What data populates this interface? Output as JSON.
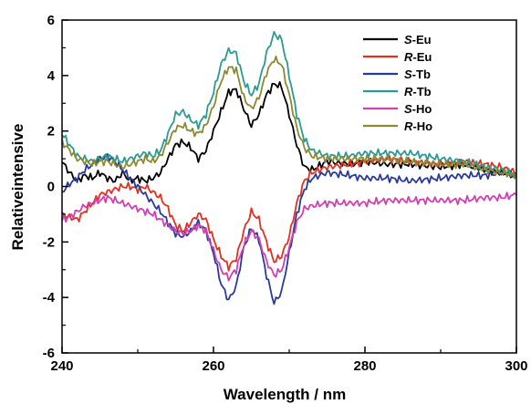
{
  "chart_data": {
    "type": "line",
    "title": "",
    "xlabel": "Wavelength / nm",
    "ylabel": "Relativeintensive",
    "xlim": [
      240,
      300
    ],
    "ylim": [
      -6,
      6
    ],
    "x_ticks": [
      240,
      260,
      280,
      300
    ],
    "y_ticks": [
      -6,
      -4,
      -2,
      0,
      2,
      4,
      6
    ],
    "grid": false,
    "legend_position": "top-right",
    "series": [
      {
        "prefix": "S",
        "suffix": "-Eu",
        "color": "#000000",
        "points": [
          [
            240,
            0.9
          ],
          [
            241,
            0.5
          ],
          [
            242,
            0.2
          ],
          [
            243,
            0.4
          ],
          [
            244,
            0.3
          ],
          [
            245,
            0.5
          ],
          [
            246,
            0.3
          ],
          [
            247,
            0.2
          ],
          [
            248,
            0.5
          ],
          [
            249,
            0.2
          ],
          [
            250,
            0.3
          ],
          [
            251,
            0.2
          ],
          [
            252,
            0.3
          ],
          [
            253,
            0.5
          ],
          [
            254,
            1.0
          ],
          [
            255,
            1.5
          ],
          [
            256,
            1.6
          ],
          [
            257,
            1.4
          ],
          [
            258,
            1.0
          ],
          [
            259,
            1.3
          ],
          [
            260,
            2.0
          ],
          [
            261,
            2.7
          ],
          [
            262,
            3.4
          ],
          [
            263,
            3.5
          ],
          [
            264,
            2.8
          ],
          [
            265,
            2.2
          ],
          [
            266,
            2.6
          ],
          [
            267,
            3.3
          ],
          [
            268,
            3.7
          ],
          [
            269,
            3.6
          ],
          [
            270,
            2.6
          ],
          [
            271,
            1.5
          ],
          [
            272,
            0.7
          ],
          [
            273,
            0.6
          ],
          [
            275,
            0.9
          ],
          [
            278,
            0.8
          ],
          [
            280,
            0.9
          ],
          [
            283,
            0.8
          ],
          [
            286,
            0.8
          ],
          [
            290,
            0.7
          ],
          [
            293,
            0.8
          ],
          [
            296,
            0.6
          ],
          [
            298,
            0.5
          ],
          [
            300,
            0.4
          ]
        ]
      },
      {
        "prefix": "R",
        "suffix": "-Eu",
        "color": "#e03020",
        "points": [
          [
            240,
            -1.0
          ],
          [
            241,
            -1.1
          ],
          [
            242,
            -1.2
          ],
          [
            243,
            -0.9
          ],
          [
            244,
            -0.6
          ],
          [
            245,
            -0.3
          ],
          [
            246,
            -0.2
          ],
          [
            247,
            -0.1
          ],
          [
            248,
            0.0
          ],
          [
            249,
            0.0
          ],
          [
            250,
            -0.1
          ],
          [
            251,
            0.0
          ],
          [
            252,
            -0.2
          ],
          [
            253,
            -0.4
          ],
          [
            254,
            -0.8
          ],
          [
            255,
            -1.4
          ],
          [
            256,
            -1.6
          ],
          [
            257,
            -1.3
          ],
          [
            258,
            -1.0
          ],
          [
            259,
            -1.2
          ],
          [
            260,
            -1.9
          ],
          [
            261,
            -2.5
          ],
          [
            262,
            -2.9
          ],
          [
            263,
            -2.6
          ],
          [
            264,
            -1.6
          ],
          [
            265,
            -0.9
          ],
          [
            266,
            -1.2
          ],
          [
            267,
            -2.0
          ],
          [
            268,
            -2.7
          ],
          [
            269,
            -2.5
          ],
          [
            270,
            -1.8
          ],
          [
            271,
            -0.6
          ],
          [
            272,
            0.2
          ],
          [
            273,
            0.5
          ],
          [
            275,
            0.7
          ],
          [
            278,
            0.8
          ],
          [
            280,
            0.9
          ],
          [
            283,
            1.0
          ],
          [
            286,
            0.9
          ],
          [
            290,
            0.8
          ],
          [
            293,
            0.9
          ],
          [
            296,
            0.8
          ],
          [
            298,
            0.7
          ],
          [
            300,
            0.5
          ]
        ]
      },
      {
        "prefix": "S",
        "suffix": "-Tb",
        "color": "#2a3a9a",
        "points": [
          [
            240,
            -0.2
          ],
          [
            241,
            0.1
          ],
          [
            242,
            0.3
          ],
          [
            243,
            0.6
          ],
          [
            244,
            0.8
          ],
          [
            245,
            1.0
          ],
          [
            246,
            1.1
          ],
          [
            247,
            0.9
          ],
          [
            248,
            0.6
          ],
          [
            249,
            0.3
          ],
          [
            250,
            0.0
          ],
          [
            251,
            -0.3
          ],
          [
            252,
            -0.6
          ],
          [
            253,
            -0.9
          ],
          [
            254,
            -1.3
          ],
          [
            255,
            -1.7
          ],
          [
            256,
            -1.8
          ],
          [
            257,
            -1.6
          ],
          [
            258,
            -1.3
          ],
          [
            259,
            -1.6
          ],
          [
            260,
            -2.4
          ],
          [
            261,
            -3.5
          ],
          [
            262,
            -4.1
          ],
          [
            263,
            -3.6
          ],
          [
            264,
            -2.2
          ],
          [
            265,
            -1.5
          ],
          [
            266,
            -1.9
          ],
          [
            267,
            -3.2
          ],
          [
            268,
            -4.2
          ],
          [
            269,
            -3.8
          ],
          [
            270,
            -2.4
          ],
          [
            271,
            -1.0
          ],
          [
            272,
            -0.1
          ],
          [
            273,
            0.3
          ],
          [
            275,
            0.5
          ],
          [
            278,
            0.4
          ],
          [
            280,
            0.3
          ],
          [
            283,
            0.3
          ],
          [
            286,
            0.2
          ],
          [
            290,
            0.3
          ],
          [
            293,
            0.4
          ],
          [
            296,
            0.4
          ],
          [
            298,
            0.5
          ],
          [
            300,
            0.4
          ]
        ]
      },
      {
        "prefix": "R",
        "suffix": "-Tb",
        "color": "#2a9a92",
        "points": [
          [
            240,
            1.9
          ],
          [
            241,
            1.5
          ],
          [
            242,
            1.1
          ],
          [
            243,
            1.0
          ],
          [
            244,
            0.9
          ],
          [
            245,
            1.0
          ],
          [
            246,
            1.1
          ],
          [
            247,
            1.0
          ],
          [
            248,
            0.9
          ],
          [
            249,
            1.0
          ],
          [
            250,
            1.1
          ],
          [
            251,
            1.2
          ],
          [
            252,
            1.1
          ],
          [
            253,
            1.3
          ],
          [
            254,
            1.9
          ],
          [
            255,
            2.6
          ],
          [
            256,
            2.7
          ],
          [
            257,
            2.4
          ],
          [
            258,
            2.2
          ],
          [
            259,
            2.6
          ],
          [
            260,
            3.4
          ],
          [
            261,
            4.4
          ],
          [
            262,
            4.9
          ],
          [
            263,
            4.8
          ],
          [
            264,
            3.8
          ],
          [
            265,
            3.3
          ],
          [
            266,
            3.7
          ],
          [
            267,
            4.8
          ],
          [
            268,
            5.5
          ],
          [
            269,
            5.3
          ],
          [
            270,
            4.0
          ],
          [
            271,
            2.6
          ],
          [
            272,
            1.7
          ],
          [
            273,
            1.3
          ],
          [
            275,
            1.1
          ],
          [
            278,
            1.1
          ],
          [
            280,
            1.2
          ],
          [
            283,
            1.2
          ],
          [
            286,
            1.2
          ],
          [
            290,
            1.0
          ],
          [
            293,
            0.9
          ],
          [
            296,
            0.7
          ],
          [
            298,
            0.6
          ],
          [
            300,
            0.4
          ]
        ]
      },
      {
        "prefix": "S",
        "suffix": "-Ho",
        "color": "#d040b0",
        "points": [
          [
            240,
            -1.2
          ],
          [
            241,
            -1.1
          ],
          [
            242,
            -0.9
          ],
          [
            243,
            -0.7
          ],
          [
            244,
            -0.6
          ],
          [
            245,
            -0.5
          ],
          [
            246,
            -0.4
          ],
          [
            247,
            -0.5
          ],
          [
            248,
            -0.6
          ],
          [
            249,
            -0.7
          ],
          [
            250,
            -0.8
          ],
          [
            251,
            -0.9
          ],
          [
            252,
            -1.0
          ],
          [
            253,
            -1.2
          ],
          [
            254,
            -1.4
          ],
          [
            255,
            -1.6
          ],
          [
            256,
            -1.7
          ],
          [
            257,
            -1.6
          ],
          [
            258,
            -1.4
          ],
          [
            259,
            -1.6
          ],
          [
            260,
            -2.3
          ],
          [
            261,
            -3.0
          ],
          [
            262,
            -3.3
          ],
          [
            263,
            -3.0
          ],
          [
            264,
            -2.1
          ],
          [
            265,
            -1.6
          ],
          [
            266,
            -1.9
          ],
          [
            267,
            -2.7
          ],
          [
            268,
            -3.2
          ],
          [
            269,
            -3.0
          ],
          [
            270,
            -2.2
          ],
          [
            271,
            -1.3
          ],
          [
            272,
            -0.8
          ],
          [
            273,
            -0.7
          ],
          [
            275,
            -0.6
          ],
          [
            278,
            -0.6
          ],
          [
            280,
            -0.6
          ],
          [
            283,
            -0.5
          ],
          [
            286,
            -0.5
          ],
          [
            290,
            -0.5
          ],
          [
            293,
            -0.5
          ],
          [
            296,
            -0.4
          ],
          [
            298,
            -0.4
          ],
          [
            300,
            -0.3
          ]
        ]
      },
      {
        "prefix": "R",
        "suffix": "-Ho",
        "color": "#8a8a30",
        "points": [
          [
            240,
            1.6
          ],
          [
            241,
            1.3
          ],
          [
            242,
            1.0
          ],
          [
            243,
            0.9
          ],
          [
            244,
            0.8
          ],
          [
            245,
            0.9
          ],
          [
            246,
            0.9
          ],
          [
            247,
            0.8
          ],
          [
            248,
            0.7
          ],
          [
            249,
            0.8
          ],
          [
            250,
            0.9
          ],
          [
            251,
            1.0
          ],
          [
            252,
            0.9
          ],
          [
            253,
            1.1
          ],
          [
            254,
            1.6
          ],
          [
            255,
            2.1
          ],
          [
            256,
            2.2
          ],
          [
            257,
            2.0
          ],
          [
            258,
            1.9
          ],
          [
            259,
            2.2
          ],
          [
            260,
            2.9
          ],
          [
            261,
            3.8
          ],
          [
            262,
            4.3
          ],
          [
            263,
            4.2
          ],
          [
            264,
            3.2
          ],
          [
            265,
            2.8
          ],
          [
            266,
            3.2
          ],
          [
            267,
            4.1
          ],
          [
            268,
            4.6
          ],
          [
            269,
            4.4
          ],
          [
            270,
            3.3
          ],
          [
            271,
            2.1
          ],
          [
            272,
            1.4
          ],
          [
            273,
            1.1
          ],
          [
            275,
            1.0
          ],
          [
            278,
            1.0
          ],
          [
            280,
            1.0
          ],
          [
            283,
            1.0
          ],
          [
            286,
            0.9
          ],
          [
            290,
            0.8
          ],
          [
            293,
            0.8
          ],
          [
            296,
            0.6
          ],
          [
            298,
            0.5
          ],
          [
            300,
            0.4
          ]
        ]
      }
    ]
  }
}
